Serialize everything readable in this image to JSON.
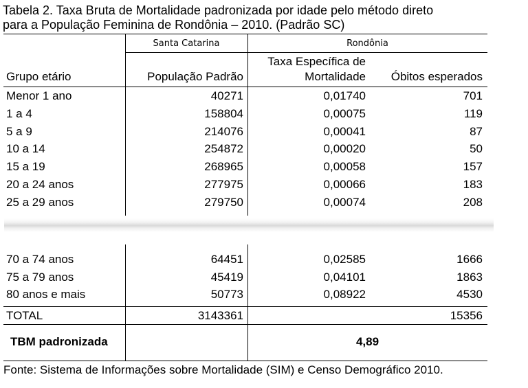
{
  "title": {
    "line1": "Tabela 2. Taxa Bruta de Mortalidade padronizada por idade pelo método direto",
    "line2": "para a População Feminina de Rondônia – 2010. (Padrão SC)"
  },
  "header": {
    "group_sc": "Santa Catarina",
    "group_ro": "Rondônia",
    "col_age": "Grupo etário",
    "col_pop": "População Padrão",
    "col_rate_line1": "Taxa Específica de",
    "col_rate_line2": "Mortalidade",
    "col_deaths": "Óbitos esperados"
  },
  "rows_top": [
    {
      "age": "Menor 1 ano",
      "pop": "40271",
      "rate": "0,01740",
      "deaths": "701"
    },
    {
      "age": "1 a 4",
      "pop": "158804",
      "rate": "0,00075",
      "deaths": "119"
    },
    {
      "age": "5 a 9",
      "pop": "214076",
      "rate": "0,00041",
      "deaths": "87"
    },
    {
      "age": "10 a 14",
      "pop": "254872",
      "rate": "0,00020",
      "deaths": "50"
    },
    {
      "age": "15 a 19",
      "pop": "268965",
      "rate": "0,00058",
      "deaths": "157"
    },
    {
      "age": "20 a 24 anos",
      "pop": "277975",
      "rate": "0,00066",
      "deaths": "183"
    },
    {
      "age": "25 a 29 anos",
      "pop": "279750",
      "rate": "0,00074",
      "deaths": "208"
    }
  ],
  "rows_bottom": [
    {
      "age": "70 a 74 anos",
      "pop": "64451",
      "rate": "0,02585",
      "deaths": "1666"
    },
    {
      "age": "75 a 79 anos",
      "pop": "45419",
      "rate": "0,04101",
      "deaths": "1863"
    },
    {
      "age": "80 anos e mais",
      "pop": "50773",
      "rate": "0,08922",
      "deaths": "4530"
    }
  ],
  "total": {
    "label": "TOTAL",
    "pop": "3143361",
    "deaths": "15356"
  },
  "tbm": {
    "label": "TBM padronizada",
    "value": "4,89"
  },
  "source": "Fonte: Sistema de Informações sobre Mortalidade (SIM) e Censo Demográfico 2010."
}
